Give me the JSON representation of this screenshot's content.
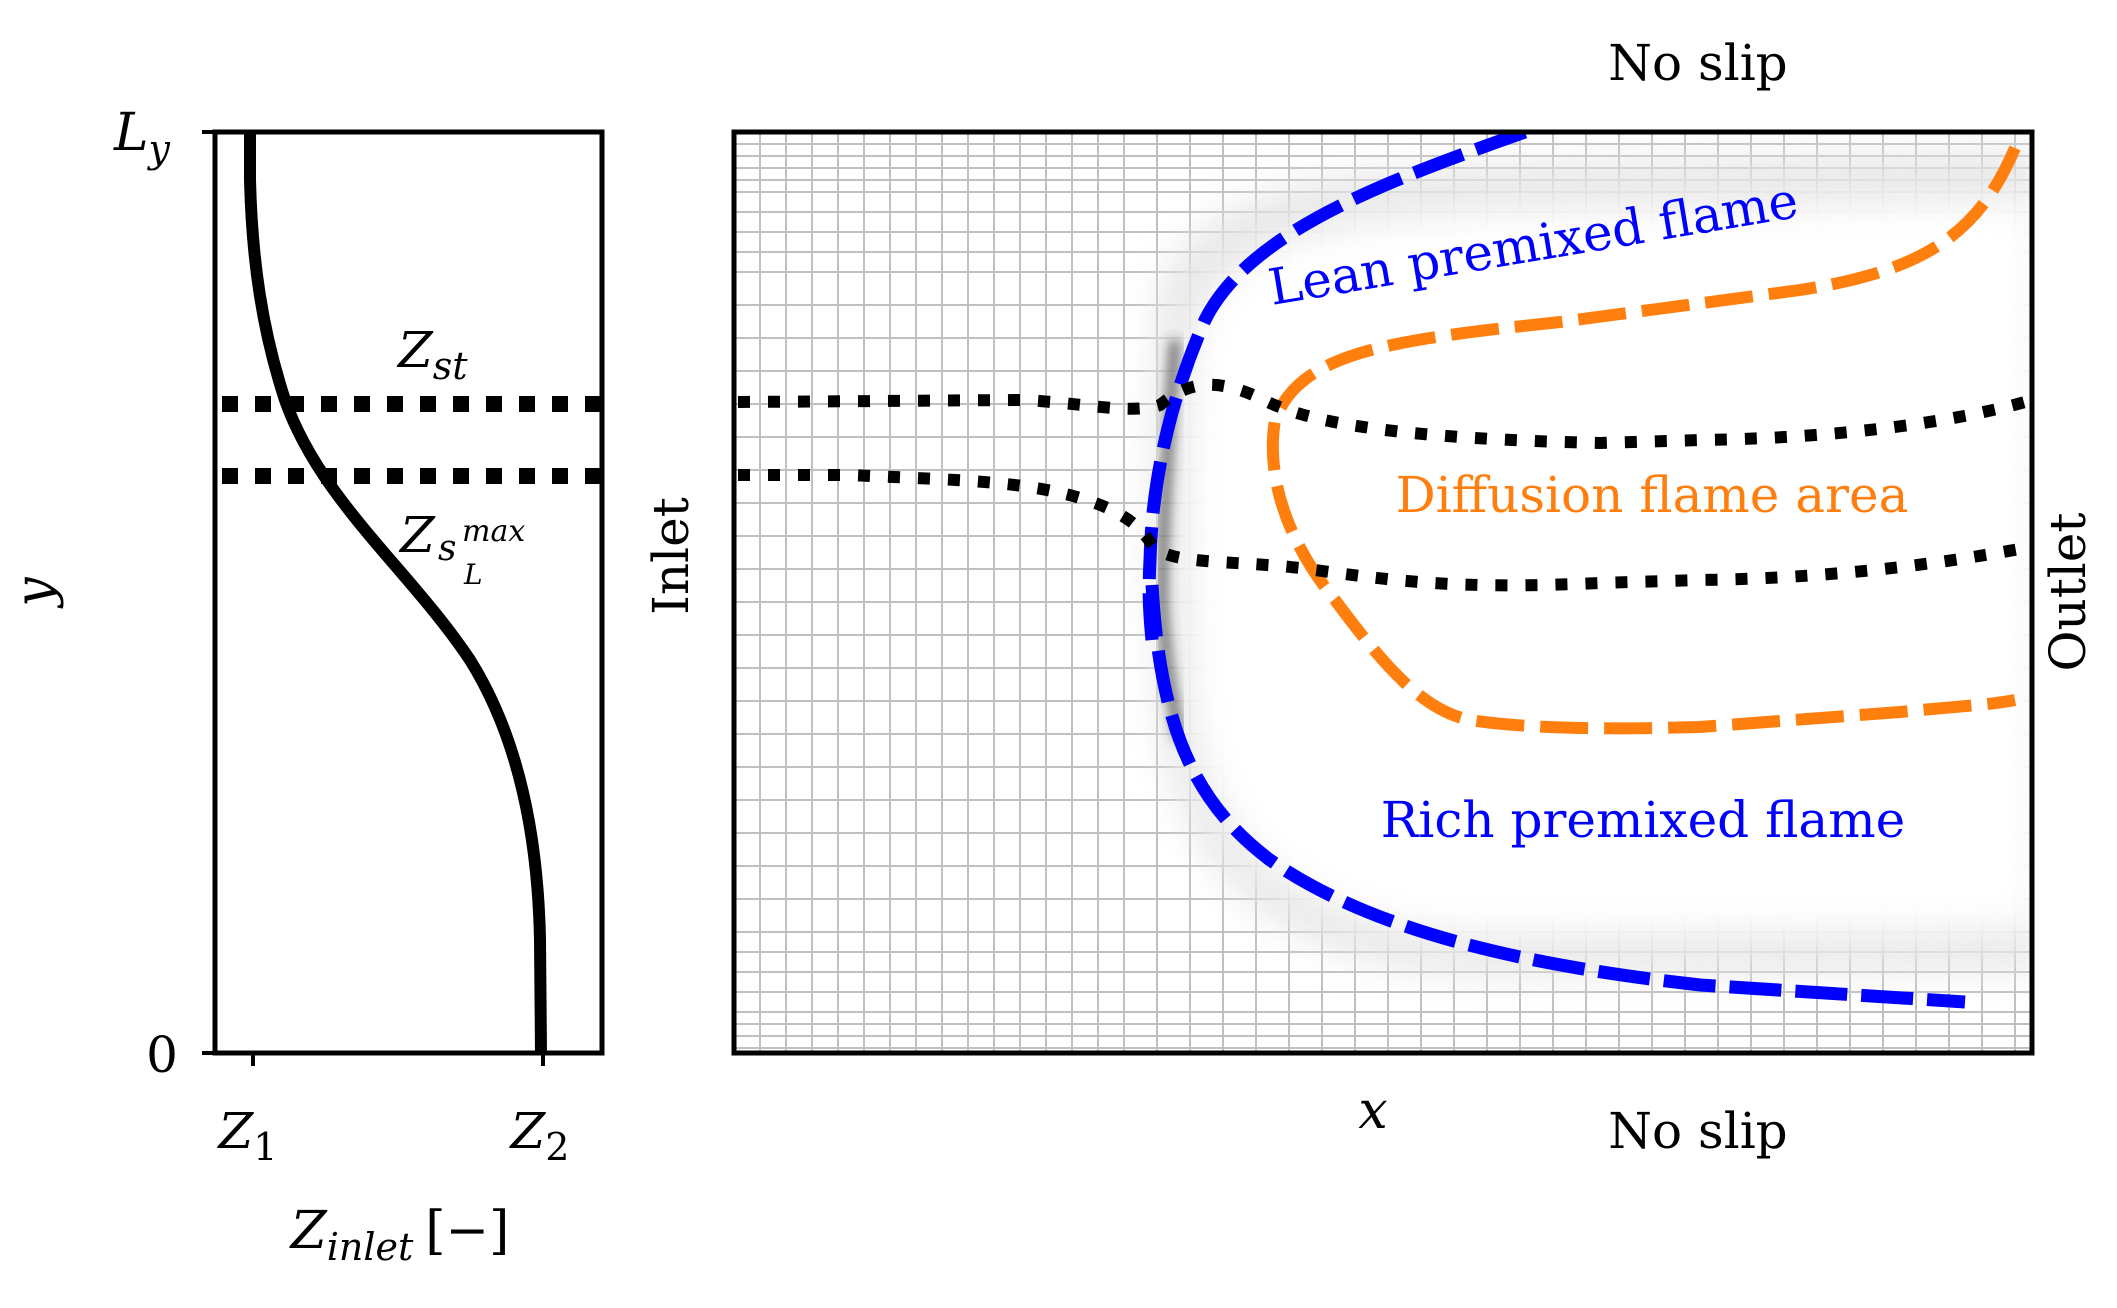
{
  "left_panel": {
    "ylabel": "y",
    "ytick_top": "L",
    "ytick_top_sub": "y",
    "ytick_bottom": "0",
    "xtick_1": "Z",
    "xtick_1_sub": "1",
    "xtick_2": "Z",
    "xtick_2_sub": "2",
    "xlabel": "Z",
    "xlabel_sub": "inlet",
    "xlabel_unit": "[−]",
    "label_zst": "Z",
    "label_zst_sub": "st",
    "label_zsl": "Z",
    "label_zsl_sub": "s",
    "label_zsl_subsub": "L",
    "label_zsl_sup": "max"
  },
  "right_panel": {
    "top_boundary": "No slip",
    "bottom_boundary": "No slip",
    "left_boundary": "Inlet",
    "right_boundary": "Outlet",
    "xlabel": "x",
    "lean_flame_label": "Lean premixed flame",
    "rich_flame_label": "Rich premixed flame",
    "diffusion_label": "Diffusion flame area"
  },
  "colors": {
    "premixed": "#0000ff",
    "diffusion": "#ff7f0e",
    "stoich": "#000000",
    "grid": "#c0c0c0"
  }
}
